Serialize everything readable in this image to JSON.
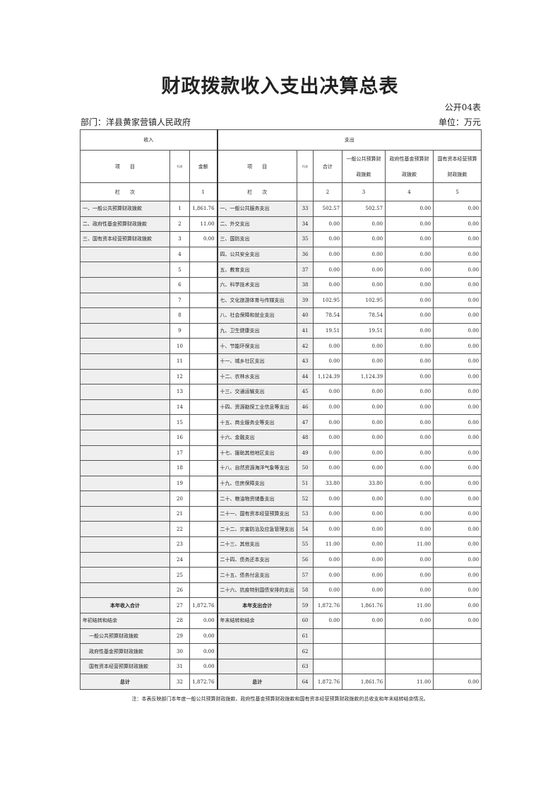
{
  "title": "财政拨款收入支出决算总表",
  "form_code": "公开04表",
  "department": "部门：洋县黄家营镇人民政府",
  "unit": "单位：万元",
  "header": {
    "income": "收入",
    "expense": "支出",
    "item": "项　　目",
    "row_no": "行次",
    "amount": "金额",
    "total": "合计",
    "col_general": "一般公共预算财政拨款",
    "col_fund": "政府性基金预算财政拨款",
    "col_state": "国有资本经营预算财政拨款",
    "lanci": "栏　　次",
    "n1": "1",
    "n2": "2",
    "n3": "3",
    "n4": "4",
    "n5": "5"
  },
  "rows": [
    {
      "in_item": "一、一般公共预算财政拨款",
      "in_no": "1",
      "in_amt": "1,861.76",
      "ex_item": "一、一般公共服务支出",
      "ex_no": "33",
      "v": [
        "502.57",
        "502.57",
        "0.00",
        "0.00"
      ]
    },
    {
      "in_item": "二、政府性基金预算财政拨款",
      "in_no": "2",
      "in_amt": "11.00",
      "ex_item": "二、外交支出",
      "ex_no": "34",
      "v": [
        "0.00",
        "0.00",
        "0.00",
        "0.00"
      ]
    },
    {
      "in_item": "三、国有资本经营预算财政拨款",
      "in_no": "3",
      "in_amt": "0.00",
      "ex_item": "三、国防支出",
      "ex_no": "35",
      "v": [
        "0.00",
        "0.00",
        "0.00",
        "0.00"
      ]
    },
    {
      "in_item": "",
      "in_no": "4",
      "in_amt": "",
      "ex_item": "四、公共安全支出",
      "ex_no": "36",
      "v": [
        "0.00",
        "0.00",
        "0.00",
        "0.00"
      ]
    },
    {
      "in_item": "",
      "in_no": "5",
      "in_amt": "",
      "ex_item": "五、教育支出",
      "ex_no": "37",
      "v": [
        "0.00",
        "0.00",
        "0.00",
        "0.00"
      ]
    },
    {
      "in_item": "",
      "in_no": "6",
      "in_amt": "",
      "ex_item": "六、科学技术支出",
      "ex_no": "38",
      "v": [
        "0.00",
        "0.00",
        "0.00",
        "0.00"
      ]
    },
    {
      "in_item": "",
      "in_no": "7",
      "in_amt": "",
      "ex_item": "七、文化旅游体育与传媒支出",
      "ex_no": "39",
      "v": [
        "102.95",
        "102.95",
        "0.00",
        "0.00"
      ]
    },
    {
      "in_item": "",
      "in_no": "8",
      "in_amt": "",
      "ex_item": "八、社会保障和就业支出",
      "ex_no": "40",
      "v": [
        "78.54",
        "78.54",
        "0.00",
        "0.00"
      ]
    },
    {
      "in_item": "",
      "in_no": "9",
      "in_amt": "",
      "ex_item": "九、卫生健康支出",
      "ex_no": "41",
      "v": [
        "19.51",
        "19.51",
        "0.00",
        "0.00"
      ]
    },
    {
      "in_item": "",
      "in_no": "10",
      "in_amt": "",
      "ex_item": "十、节能环保支出",
      "ex_no": "42",
      "v": [
        "0.00",
        "0.00",
        "0.00",
        "0.00"
      ]
    },
    {
      "in_item": "",
      "in_no": "11",
      "in_amt": "",
      "ex_item": "十一、城乡社区支出",
      "ex_no": "43",
      "v": [
        "0.00",
        "0.00",
        "0.00",
        "0.00"
      ]
    },
    {
      "in_item": "",
      "in_no": "12",
      "in_amt": "",
      "ex_item": "十二、农林水支出",
      "ex_no": "44",
      "v": [
        "1,124.39",
        "1,124.39",
        "0.00",
        "0.00"
      ]
    },
    {
      "in_item": "",
      "in_no": "13",
      "in_amt": "",
      "ex_item": "十三、交通运输支出",
      "ex_no": "45",
      "v": [
        "0.00",
        "0.00",
        "0.00",
        "0.00"
      ]
    },
    {
      "in_item": "",
      "in_no": "14",
      "in_amt": "",
      "ex_item": "十四、资源勘探工业信息等支出",
      "ex_no": "46",
      "v": [
        "0.00",
        "0.00",
        "0.00",
        "0.00"
      ]
    },
    {
      "in_item": "",
      "in_no": "15",
      "in_amt": "",
      "ex_item": "十五、商业服务业等支出",
      "ex_no": "47",
      "v": [
        "0.00",
        "0.00",
        "0.00",
        "0.00"
      ]
    },
    {
      "in_item": "",
      "in_no": "16",
      "in_amt": "",
      "ex_item": "十六、金融支出",
      "ex_no": "48",
      "v": [
        "0.00",
        "0.00",
        "0.00",
        "0.00"
      ]
    },
    {
      "in_item": "",
      "in_no": "17",
      "in_amt": "",
      "ex_item": "十七、援助其他地区支出",
      "ex_no": "49",
      "v": [
        "0.00",
        "0.00",
        "0.00",
        "0.00"
      ]
    },
    {
      "in_item": "",
      "in_no": "18",
      "in_amt": "",
      "ex_item": "十八、自然资源海洋气象等支出",
      "ex_no": "50",
      "v": [
        "0.00",
        "0.00",
        "0.00",
        "0.00"
      ]
    },
    {
      "in_item": "",
      "in_no": "19",
      "in_amt": "",
      "ex_item": "十九、住房保障支出",
      "ex_no": "51",
      "v": [
        "33.80",
        "33.80",
        "0.00",
        "0.00"
      ]
    },
    {
      "in_item": "",
      "in_no": "20",
      "in_amt": "",
      "ex_item": "二十、粮油物资储备支出",
      "ex_no": "52",
      "v": [
        "0.00",
        "0.00",
        "0.00",
        "0.00"
      ]
    },
    {
      "in_item": "",
      "in_no": "21",
      "in_amt": "",
      "ex_item": "二十一、国有资本经营预算支出",
      "ex_no": "53",
      "v": [
        "0.00",
        "0.00",
        "0.00",
        "0.00"
      ]
    },
    {
      "in_item": "",
      "in_no": "22",
      "in_amt": "",
      "ex_item": "二十二、灾害防治及应急管理支出",
      "ex_no": "54",
      "v": [
        "0.00",
        "0.00",
        "0.00",
        "0.00"
      ]
    },
    {
      "in_item": "",
      "in_no": "23",
      "in_amt": "",
      "ex_item": "二十三、其他支出",
      "ex_no": "55",
      "v": [
        "11.00",
        "0.00",
        "11.00",
        "0.00"
      ]
    },
    {
      "in_item": "",
      "in_no": "24",
      "in_amt": "",
      "ex_item": "二十四、债务还本支出",
      "ex_no": "56",
      "v": [
        "0.00",
        "0.00",
        "0.00",
        "0.00"
      ]
    },
    {
      "in_item": "",
      "in_no": "25",
      "in_amt": "",
      "ex_item": "二十五、债务付息支出",
      "ex_no": "57",
      "v": [
        "0.00",
        "0.00",
        "0.00",
        "0.00"
      ]
    },
    {
      "in_item": "",
      "in_no": "26",
      "in_amt": "",
      "ex_item": "二十六、抗疫特别国债安排的支出",
      "ex_no": "58",
      "v": [
        "0.00",
        "0.00",
        "0.00",
        "0.00"
      ]
    }
  ],
  "summary": [
    {
      "in_item": "本年收入合计",
      "in_no": "27",
      "in_amt": "1,872.76",
      "ex_item": "本年支出合计",
      "ex_no": "59",
      "v": [
        "1,872.76",
        "1,861.76",
        "11.00",
        "0.00"
      ],
      "style": "bold"
    },
    {
      "in_item": "年初结转和结余",
      "in_no": "28",
      "in_amt": "0.00",
      "ex_item": "年末结转和结余",
      "ex_no": "60",
      "v": [
        "0.00",
        "0.00",
        "0.00",
        "0.00"
      ],
      "style": "left"
    },
    {
      "in_item": "一般公共预算财政拨款",
      "in_no": "29",
      "in_amt": "0.00",
      "ex_item": "",
      "ex_no": "61",
      "v": [
        "",
        "",
        "",
        ""
      ],
      "style": "indent"
    },
    {
      "in_item": "政府性基金预算财政拨款",
      "in_no": "30",
      "in_amt": "0.00",
      "ex_item": "",
      "ex_no": "62",
      "v": [
        "",
        "",
        "",
        ""
      ],
      "style": "indent"
    },
    {
      "in_item": "国有资本经营预算财政拨款",
      "in_no": "31",
      "in_amt": "0.00",
      "ex_item": "",
      "ex_no": "63",
      "v": [
        "",
        "",
        "",
        ""
      ],
      "style": "indent"
    },
    {
      "in_item": "总计",
      "in_no": "32",
      "in_amt": "1,872.76",
      "ex_item": "总计",
      "ex_no": "64",
      "v": [
        "1,872.76",
        "1,861.76",
        "11.00",
        "0.00"
      ],
      "style": "bold"
    }
  ],
  "note": "注：本表反映部门本年度一般公共预算财政拨款、政府性基金预算财政拨款和国有资本经营预算财政拨款的总收支和年末结转结余情况。"
}
